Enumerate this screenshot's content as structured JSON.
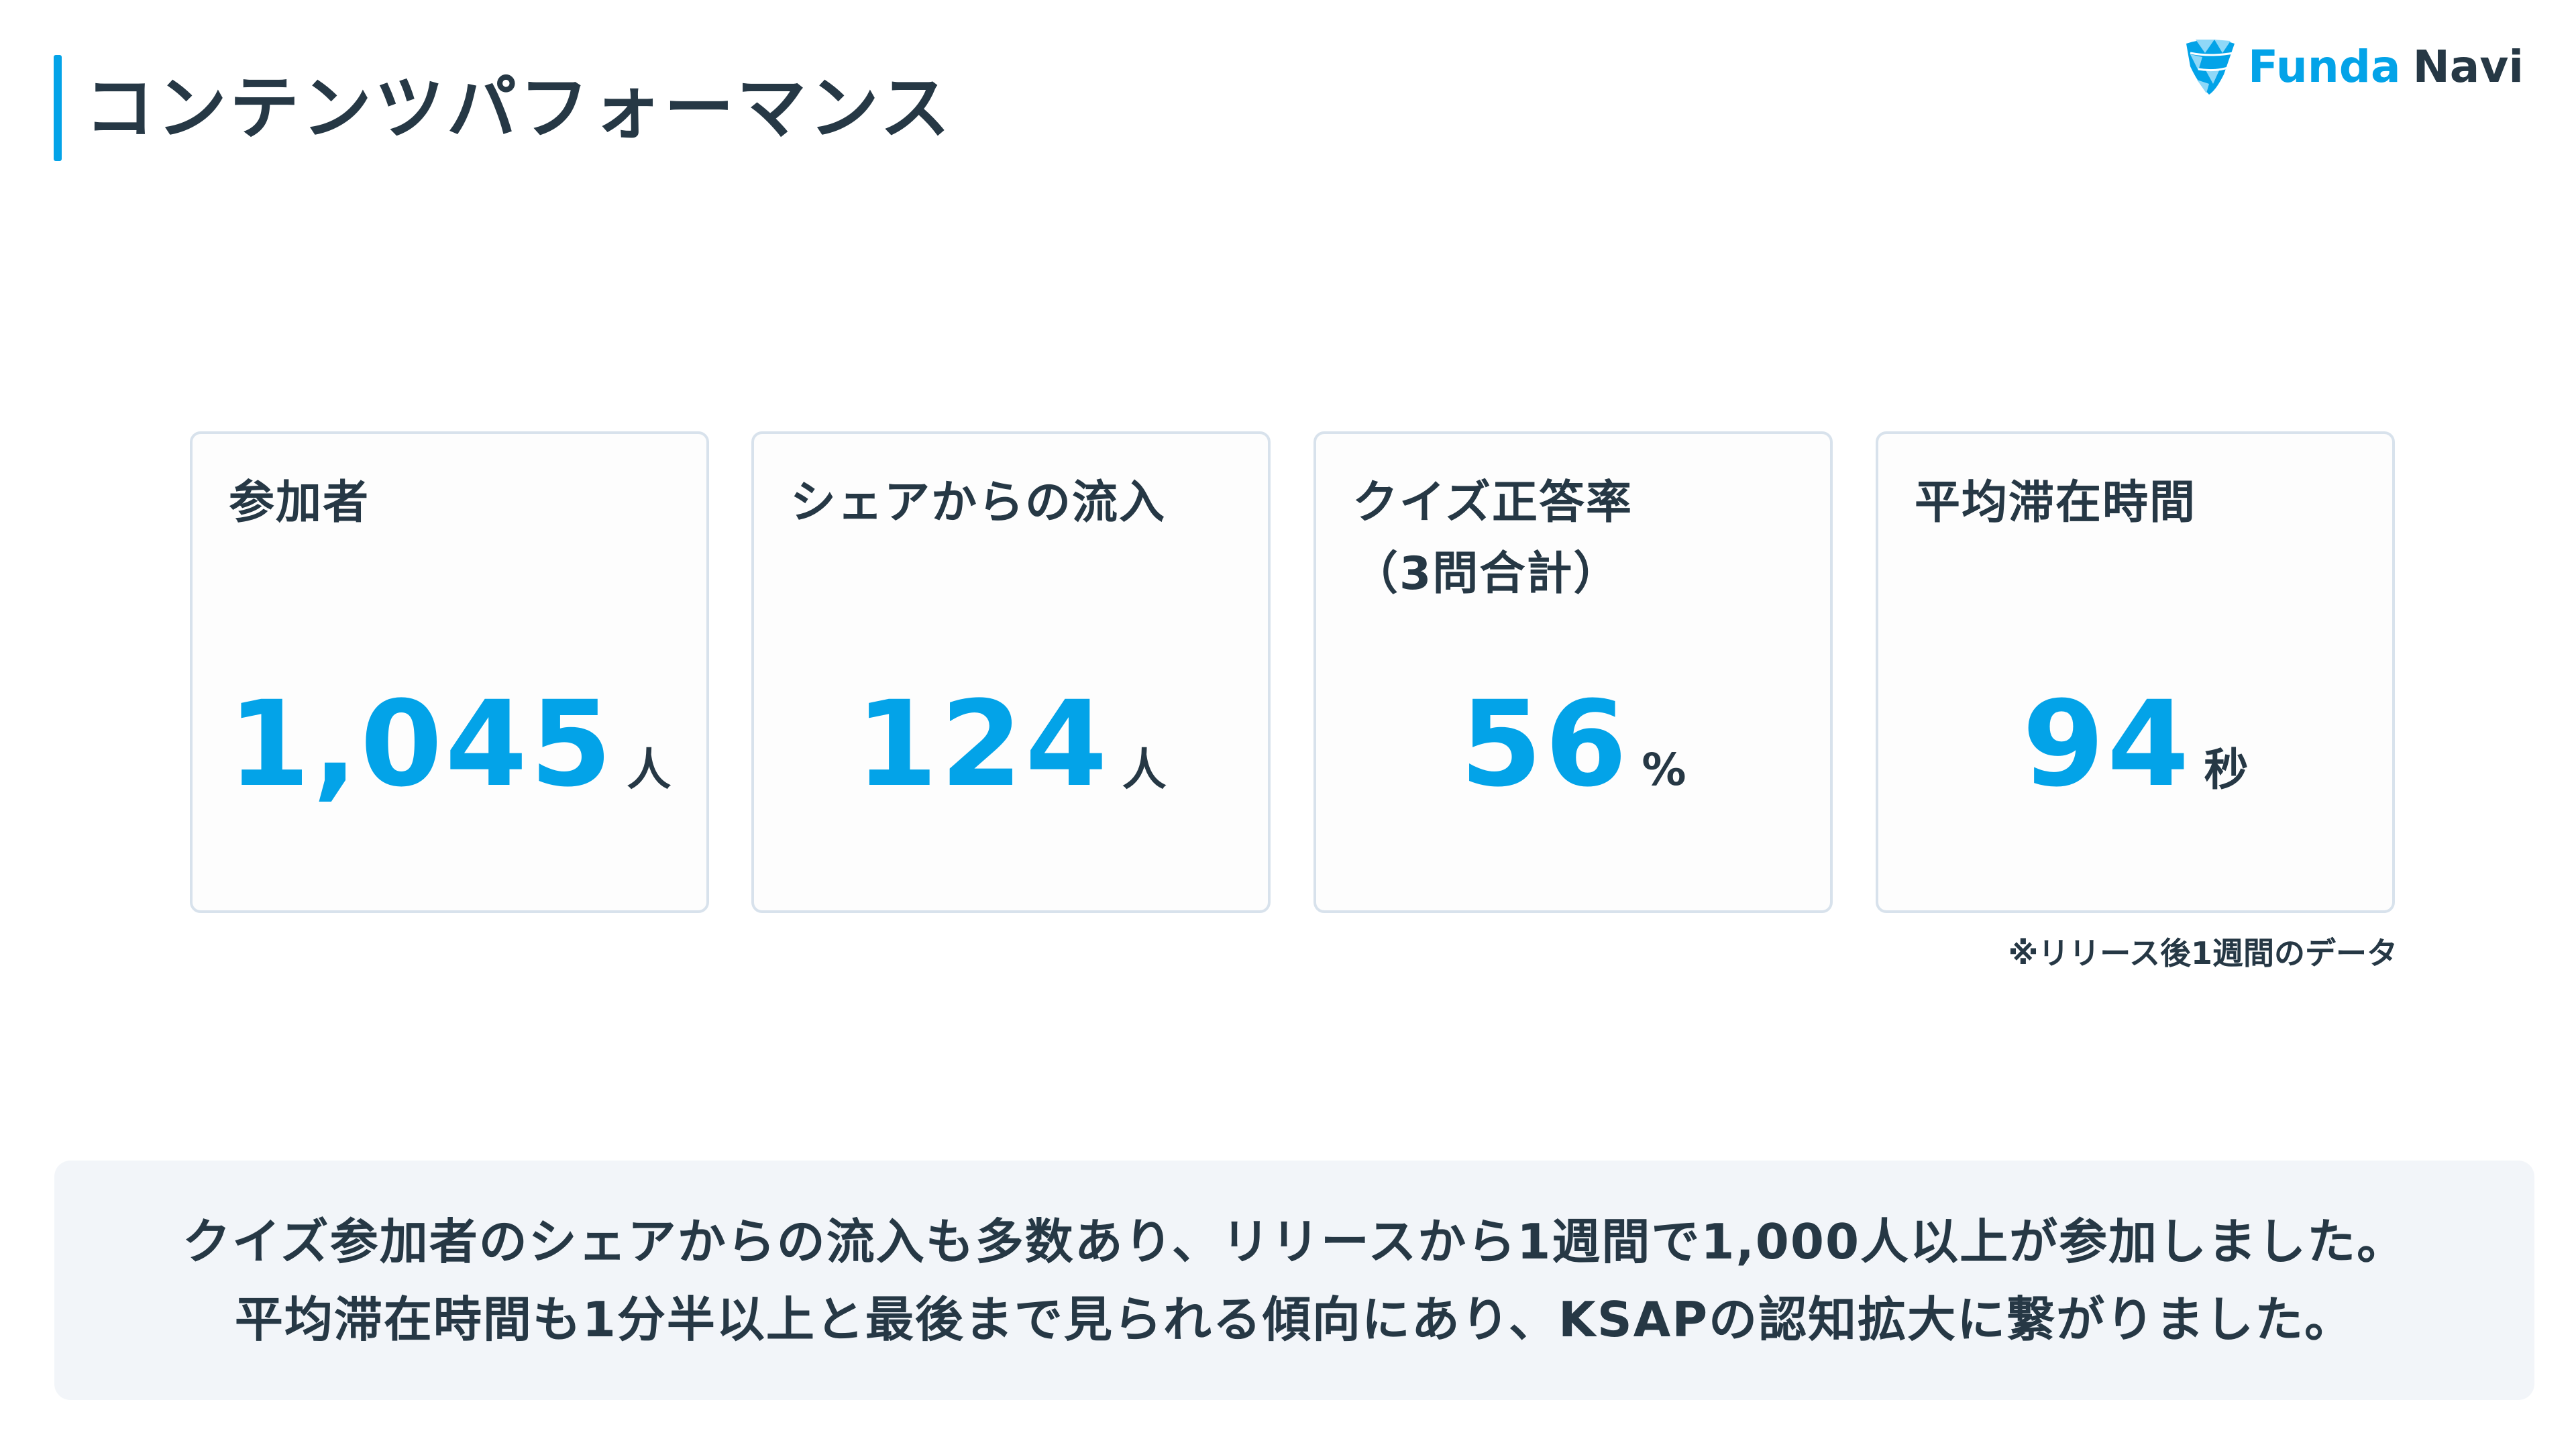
{
  "header": {
    "title": "コンテンツパフォーマンス"
  },
  "logo": {
    "text_primary": "Funda",
    "text_secondary": "Navi",
    "colors": {
      "primary": "#03a3e8",
      "dark": "#263845"
    }
  },
  "cards": [
    {
      "label": "参加者",
      "value": "1,045",
      "unit": "人"
    },
    {
      "label": "シェアからの流入",
      "value": "124",
      "unit": "人"
    },
    {
      "label": "クイズ正答率\n（3問合計）",
      "label_line1": "クイズ正答率",
      "label_line2": "（3問合計）",
      "value": "56",
      "unit": "%"
    },
    {
      "label": "平均滞在時間",
      "value": "94",
      "unit": "秒"
    }
  ],
  "footnote": "※リリース後1週間のデータ",
  "summary": {
    "lines": [
      "クイズ参加者のシェアからの流入も多数あり、リリースから1週間で1,000人以上が参加しました。",
      "平均滞在時間も1分半以上と最後まで見られる傾向にあり、KSAPの認知拡大に繋がりました。"
    ]
  },
  "colors": {
    "accent": "#03a3e8",
    "text": "#263845",
    "card_border": "#d8e2ec",
    "summary_bg": "#f2f5f9"
  }
}
